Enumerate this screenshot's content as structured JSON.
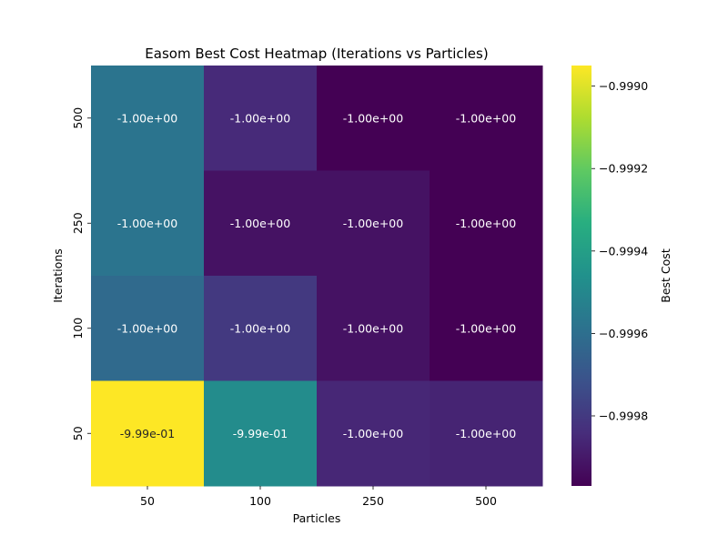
{
  "chart_data": {
    "type": "heatmap",
    "title": "Easom Best Cost Heatmap (Iterations vs Particles)",
    "xlabel": "Particles",
    "ylabel": "Iterations",
    "x_categories": [
      "50",
      "100",
      "250",
      "500"
    ],
    "y_categories": [
      "500",
      "250",
      "100",
      "50"
    ],
    "values": [
      [
        -0.99958,
        -0.99985,
        -0.99997,
        -0.99997
      ],
      [
        -0.99958,
        -0.99992,
        -0.99992,
        -0.99997
      ],
      [
        -0.99962,
        -0.9998,
        -0.99992,
        -0.99997
      ],
      [
        -0.99895,
        -0.99948,
        -0.99986,
        -0.99987
      ]
    ],
    "cell_labels": [
      [
        "-1.00e+00",
        "-1.00e+00",
        "-1.00e+00",
        "-1.00e+00"
      ],
      [
        "-1.00e+00",
        "-1.00e+00",
        "-1.00e+00",
        "-1.00e+00"
      ],
      [
        "-1.00e+00",
        "-1.00e+00",
        "-1.00e+00",
        "-1.00e+00"
      ],
      [
        "-9.99e-01",
        "-9.99e-01",
        "-1.00e+00",
        "-1.00e+00"
      ]
    ],
    "colorbar": {
      "label": "Best Cost",
      "range": [
        -0.99997,
        -0.99895
      ],
      "ticks": [
        -0.999,
        -0.9992,
        -0.9994,
        -0.9996,
        -0.9998
      ],
      "tick_labels": [
        "−0.9990",
        "−0.9992",
        "−0.9994",
        "−0.9996",
        "−0.9998"
      ]
    },
    "colormap": "viridis",
    "grid": false
  }
}
